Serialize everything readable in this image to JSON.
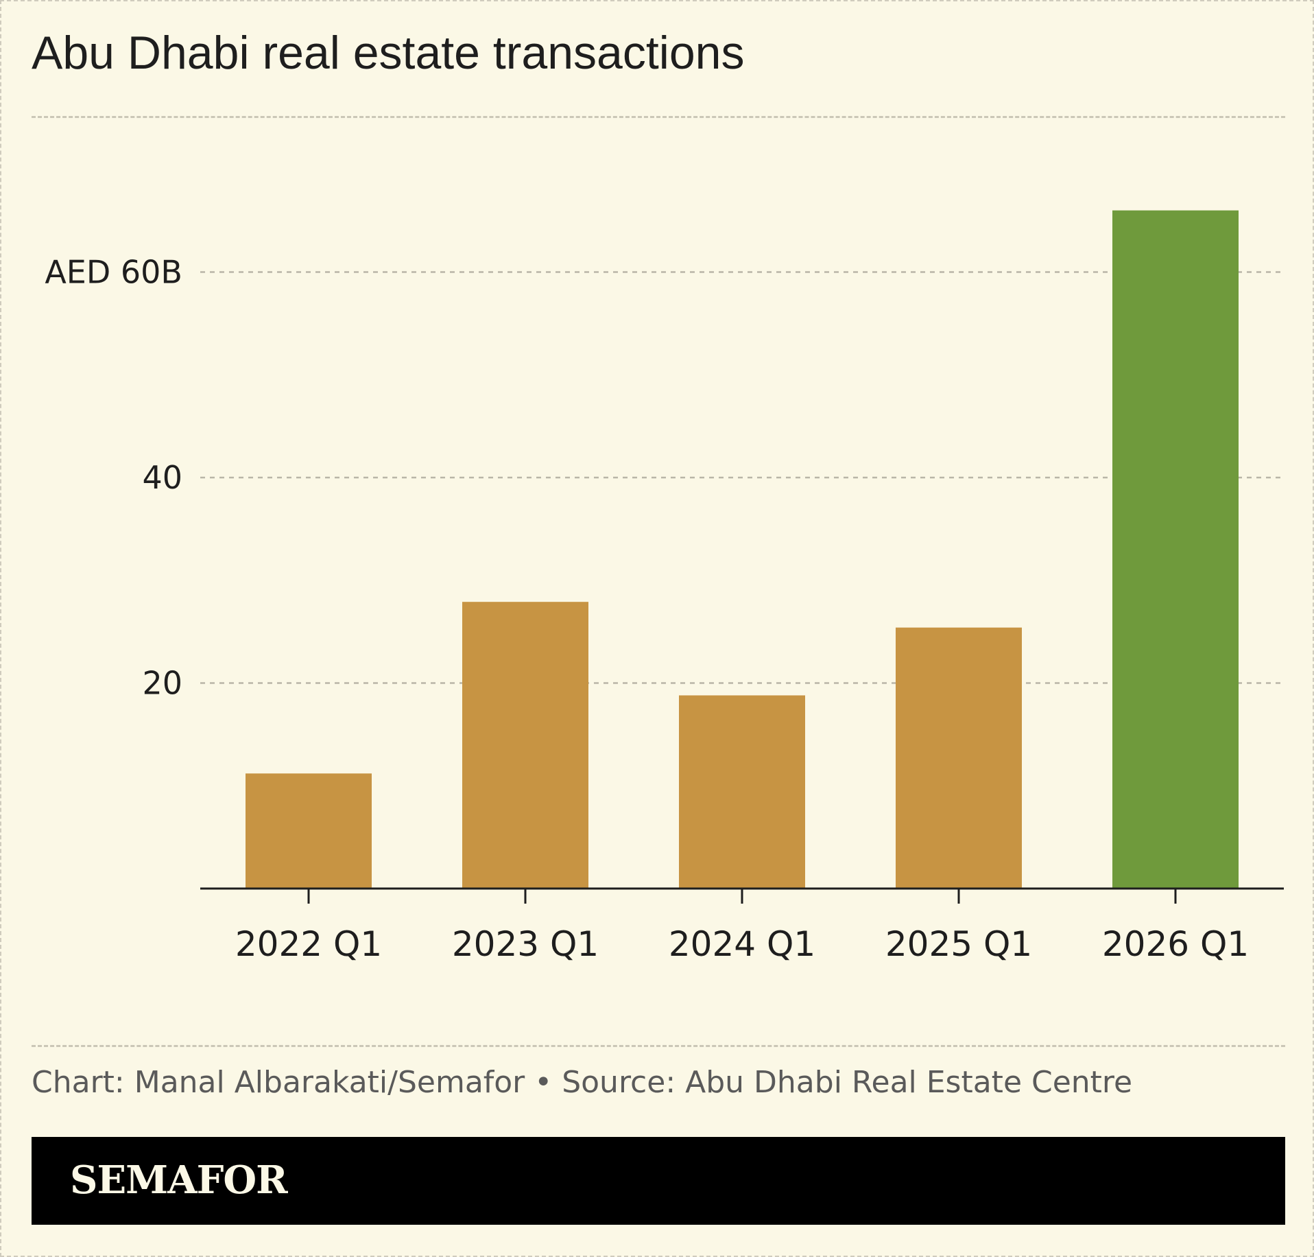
{
  "title": "Abu Dhabi real estate transactions",
  "credit": "Chart: Manal Albarakati/Semafor • Source: Abu Dhabi Real Estate Centre",
  "brand": "SEMAFOR",
  "colors": {
    "background": "#fbf8e6",
    "bar_default": "#c79443",
    "bar_highlight": "#6f9a3c",
    "grid": "#b9b5a7",
    "text": "#1e1e1e",
    "brand_bar": "#000000"
  },
  "chart_data": {
    "type": "bar",
    "title": "Abu Dhabi real estate transactions",
    "categories": [
      "2022 Q1",
      "2023 Q1",
      "2024 Q1",
      "2025 Q1",
      "2026 Q1"
    ],
    "values": [
      11.2,
      27.9,
      18.8,
      25.4,
      66.0
    ],
    "highlight_index": 4,
    "ylim": [
      0,
      75
    ],
    "yticks": [
      20,
      40,
      60
    ],
    "ytick_labels": [
      "20",
      "40",
      "AED 60B"
    ],
    "grid": true,
    "xlabel": "",
    "ylabel": ""
  }
}
